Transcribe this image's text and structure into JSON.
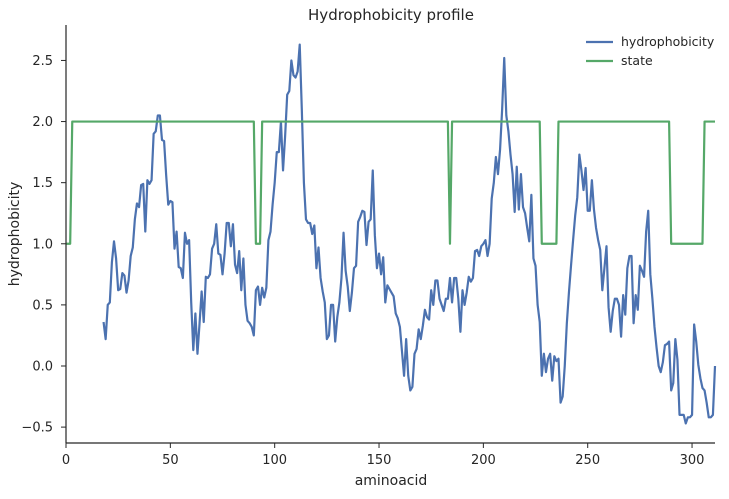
{
  "chart_data": {
    "type": "line",
    "title": "Hydrophobicity profile",
    "xlabel": "aminoacid",
    "ylabel": "hydrophobicity",
    "xlim": [
      0,
      311
    ],
    "ylim": [
      -0.63,
      2.79
    ],
    "xticks": [
      0,
      50,
      100,
      150,
      200,
      250,
      300
    ],
    "yticks": [
      -0.5,
      0.0,
      0.5,
      1.0,
      1.5,
      2.0,
      2.5
    ],
    "xtick_labels": [
      "0",
      "50",
      "100",
      "150",
      "200",
      "250",
      "300"
    ],
    "ytick_labels": [
      "−0.5",
      "0.0",
      "0.5",
      "1.0",
      "1.5",
      "2.0",
      "2.5"
    ],
    "grid": false,
    "legend_position": "top-right",
    "series": [
      {
        "name": "hydrophobicity",
        "color": "#4c72b0",
        "points": [
          [
            18,
            0.36
          ],
          [
            19,
            0.22
          ],
          [
            20,
            0.5
          ],
          [
            21,
            0.52
          ],
          [
            22,
            0.85
          ],
          [
            23,
            1.02
          ],
          [
            24,
            0.88
          ],
          [
            25,
            0.62
          ],
          [
            26,
            0.63
          ],
          [
            27,
            0.76
          ],
          [
            28,
            0.74
          ],
          [
            29,
            0.6
          ],
          [
            30,
            0.7
          ],
          [
            31,
            0.9
          ],
          [
            32,
            0.97
          ],
          [
            33,
            1.2
          ],
          [
            34,
            1.33
          ],
          [
            35,
            1.3
          ],
          [
            36,
            1.48
          ],
          [
            37,
            1.49
          ],
          [
            38,
            1.1
          ],
          [
            39,
            1.52
          ],
          [
            40,
            1.49
          ],
          [
            41,
            1.52
          ],
          [
            42,
            1.9
          ],
          [
            43,
            1.92
          ],
          [
            44,
            2.05
          ],
          [
            45,
            2.05
          ],
          [
            46,
            1.85
          ],
          [
            47,
            1.84
          ],
          [
            48,
            1.56
          ],
          [
            49,
            1.32
          ],
          [
            50,
            1.35
          ],
          [
            51,
            1.34
          ],
          [
            52,
            0.96
          ],
          [
            53,
            1.1
          ],
          [
            54,
            0.81
          ],
          [
            55,
            0.8
          ],
          [
            56,
            0.72
          ],
          [
            57,
            1.09
          ],
          [
            58,
            1.0
          ],
          [
            59,
            1.03
          ],
          [
            60,
            0.52
          ],
          [
            61,
            0.13
          ],
          [
            62,
            0.43
          ],
          [
            63,
            0.1
          ],
          [
            64,
            0.35
          ],
          [
            65,
            0.61
          ],
          [
            66,
            0.36
          ],
          [
            67,
            0.73
          ],
          [
            68,
            0.72
          ],
          [
            69,
            0.75
          ],
          [
            70,
            0.96
          ],
          [
            71,
            1.0
          ],
          [
            72,
            1.16
          ],
          [
            73,
            0.92
          ],
          [
            74,
            0.91
          ],
          [
            75,
            0.75
          ],
          [
            76,
            0.92
          ],
          [
            77,
            1.17
          ],
          [
            78,
            1.17
          ],
          [
            79,
            0.98
          ],
          [
            80,
            1.16
          ],
          [
            81,
            0.83
          ],
          [
            82,
            0.76
          ],
          [
            83,
            0.94
          ],
          [
            84,
            0.62
          ],
          [
            85,
            0.88
          ],
          [
            86,
            0.5
          ],
          [
            87,
            0.37
          ],
          [
            88,
            0.35
          ],
          [
            89,
            0.32
          ],
          [
            90,
            0.25
          ],
          [
            91,
            0.62
          ],
          [
            92,
            0.65
          ],
          [
            93,
            0.5
          ],
          [
            94,
            0.64
          ],
          [
            95,
            0.56
          ],
          [
            96,
            0.64
          ],
          [
            97,
            1.03
          ],
          [
            98,
            1.1
          ],
          [
            99,
            1.32
          ],
          [
            100,
            1.5
          ],
          [
            101,
            1.75
          ],
          [
            102,
            1.75
          ],
          [
            103,
            2.0
          ],
          [
            104,
            1.6
          ],
          [
            105,
            1.88
          ],
          [
            106,
            2.22
          ],
          [
            107,
            2.25
          ],
          [
            108,
            2.5
          ],
          [
            109,
            2.38
          ],
          [
            110,
            2.36
          ],
          [
            111,
            2.41
          ],
          [
            112,
            2.63
          ],
          [
            113,
            2.1
          ],
          [
            114,
            1.5
          ],
          [
            115,
            1.2
          ],
          [
            116,
            1.17
          ],
          [
            117,
            1.17
          ],
          [
            118,
            1.08
          ],
          [
            119,
            1.15
          ],
          [
            120,
            0.8
          ],
          [
            121,
            0.97
          ],
          [
            122,
            0.72
          ],
          [
            123,
            0.61
          ],
          [
            124,
            0.52
          ],
          [
            125,
            0.22
          ],
          [
            126,
            0.25
          ],
          [
            127,
            0.5
          ],
          [
            128,
            0.5
          ],
          [
            129,
            0.2
          ],
          [
            130,
            0.4
          ],
          [
            131,
            0.52
          ],
          [
            132,
            0.72
          ],
          [
            133,
            1.09
          ],
          [
            134,
            0.78
          ],
          [
            135,
            0.65
          ],
          [
            136,
            0.45
          ],
          [
            137,
            0.6
          ],
          [
            138,
            0.8
          ],
          [
            139,
            0.82
          ],
          [
            140,
            1.18
          ],
          [
            141,
            1.22
          ],
          [
            142,
            1.27
          ],
          [
            143,
            1.26
          ],
          [
            144,
            0.99
          ],
          [
            145,
            1.18
          ],
          [
            146,
            1.2
          ],
          [
            147,
            1.6
          ],
          [
            148,
            1.07
          ],
          [
            149,
            0.8
          ],
          [
            150,
            0.92
          ],
          [
            151,
            0.75
          ],
          [
            152,
            0.89
          ],
          [
            153,
            0.52
          ],
          [
            154,
            0.66
          ],
          [
            155,
            0.63
          ],
          [
            156,
            0.6
          ],
          [
            157,
            0.57
          ],
          [
            158,
            0.43
          ],
          [
            159,
            0.39
          ],
          [
            160,
            0.32
          ],
          [
            161,
            0.12
          ],
          [
            162,
            -0.08
          ],
          [
            163,
            0.22
          ],
          [
            164,
            -0.08
          ],
          [
            165,
            -0.2
          ],
          [
            166,
            -0.17
          ],
          [
            167,
            0.1
          ],
          [
            168,
            0.14
          ],
          [
            169,
            0.3
          ],
          [
            170,
            0.22
          ],
          [
            171,
            0.33
          ],
          [
            172,
            0.46
          ],
          [
            173,
            0.4
          ],
          [
            174,
            0.38
          ],
          [
            175,
            0.62
          ],
          [
            176,
            0.5
          ],
          [
            177,
            0.7
          ],
          [
            178,
            0.7
          ],
          [
            179,
            0.55
          ],
          [
            180,
            0.5
          ],
          [
            181,
            0.45
          ],
          [
            182,
            0.55
          ],
          [
            183,
            0.55
          ],
          [
            184,
            0.72
          ],
          [
            185,
            0.52
          ],
          [
            186,
            0.72
          ],
          [
            187,
            0.72
          ],
          [
            188,
            0.55
          ],
          [
            189,
            0.28
          ],
          [
            190,
            0.62
          ],
          [
            191,
            0.5
          ],
          [
            192,
            0.6
          ],
          [
            193,
            0.73
          ],
          [
            194,
            0.69
          ],
          [
            195,
            0.72
          ],
          [
            196,
            0.94
          ],
          [
            197,
            0.95
          ],
          [
            198,
            0.9
          ],
          [
            199,
            0.98
          ],
          [
            200,
            1.0
          ],
          [
            201,
            1.03
          ],
          [
            202,
            0.9
          ],
          [
            203,
            1.0
          ],
          [
            204,
            1.37
          ],
          [
            205,
            1.5
          ],
          [
            206,
            1.71
          ],
          [
            207,
            1.57
          ],
          [
            208,
            1.77
          ],
          [
            209,
            2.1
          ],
          [
            210,
            2.52
          ],
          [
            211,
            2.05
          ],
          [
            212,
            1.92
          ],
          [
            213,
            1.73
          ],
          [
            214,
            1.57
          ],
          [
            215,
            1.26
          ],
          [
            216,
            1.63
          ],
          [
            217,
            1.28
          ],
          [
            218,
            1.57
          ],
          [
            219,
            1.3
          ],
          [
            220,
            1.25
          ],
          [
            221,
            1.13
          ],
          [
            222,
            1.02
          ],
          [
            223,
            1.4
          ],
          [
            224,
            0.88
          ],
          [
            225,
            0.82
          ],
          [
            226,
            0.5
          ],
          [
            227,
            0.36
          ],
          [
            228,
            -0.08
          ],
          [
            229,
            0.1
          ],
          [
            230,
            -0.05
          ],
          [
            231,
            0.06
          ],
          [
            232,
            0.1
          ],
          [
            233,
            -0.12
          ],
          [
            234,
            0.08
          ],
          [
            235,
            0.04
          ],
          [
            236,
            0.06
          ],
          [
            237,
            -0.3
          ],
          [
            238,
            -0.25
          ],
          [
            239,
            0.0
          ],
          [
            240,
            0.35
          ],
          [
            241,
            0.6
          ],
          [
            242,
            0.82
          ],
          [
            243,
            1.03
          ],
          [
            244,
            1.23
          ],
          [
            245,
            1.38
          ],
          [
            246,
            1.73
          ],
          [
            247,
            1.6
          ],
          [
            248,
            1.44
          ],
          [
            249,
            1.62
          ],
          [
            250,
            1.27
          ],
          [
            251,
            1.27
          ],
          [
            252,
            1.52
          ],
          [
            253,
            1.28
          ],
          [
            254,
            1.13
          ],
          [
            255,
            1.03
          ],
          [
            256,
            0.95
          ],
          [
            257,
            0.62
          ],
          [
            258,
            0.8
          ],
          [
            259,
            0.98
          ],
          [
            260,
            0.48
          ],
          [
            261,
            0.28
          ],
          [
            262,
            0.45
          ],
          [
            263,
            0.55
          ],
          [
            264,
            0.55
          ],
          [
            265,
            0.5
          ],
          [
            266,
            0.24
          ],
          [
            267,
            0.58
          ],
          [
            268,
            0.42
          ],
          [
            269,
            0.8
          ],
          [
            270,
            0.9
          ],
          [
            271,
            0.9
          ],
          [
            272,
            0.35
          ],
          [
            273,
            0.58
          ],
          [
            274,
            0.46
          ],
          [
            275,
            0.82
          ],
          [
            276,
            0.78
          ],
          [
            277,
            0.73
          ],
          [
            278,
            1.1
          ],
          [
            279,
            1.27
          ],
          [
            280,
            0.75
          ],
          [
            281,
            0.55
          ],
          [
            282,
            0.32
          ],
          [
            283,
            0.15
          ],
          [
            284,
            0.0
          ],
          [
            285,
            -0.05
          ],
          [
            286,
            0.03
          ],
          [
            287,
            0.17
          ],
          [
            288,
            0.18
          ],
          [
            289,
            0.2
          ],
          [
            290,
            -0.2
          ],
          [
            291,
            -0.14
          ],
          [
            292,
            0.22
          ],
          [
            293,
            0.05
          ],
          [
            294,
            -0.4
          ],
          [
            295,
            -0.4
          ],
          [
            296,
            -0.4
          ],
          [
            297,
            -0.47
          ],
          [
            298,
            -0.42
          ],
          [
            299,
            -0.42
          ],
          [
            300,
            -0.4
          ],
          [
            301,
            0.34
          ],
          [
            302,
            0.2
          ],
          [
            303,
            0.01
          ],
          [
            304,
            -0.1
          ],
          [
            305,
            -0.18
          ],
          [
            306,
            -0.2
          ],
          [
            307,
            -0.3
          ],
          [
            308,
            -0.42
          ],
          [
            309,
            -0.42
          ],
          [
            310,
            -0.4
          ],
          [
            311,
            0.0
          ]
        ]
      },
      {
        "name": "state",
        "color": "#55a868",
        "points": [
          [
            0,
            1.0
          ],
          [
            2,
            1.0
          ],
          [
            3,
            2.0
          ],
          [
            90,
            2.0
          ],
          [
            91,
            1.0
          ],
          [
            93,
            1.0
          ],
          [
            94,
            2.0
          ],
          [
            183,
            2.0
          ],
          [
            184,
            1.0
          ],
          [
            185,
            2.0
          ],
          [
            227,
            2.0
          ],
          [
            228,
            1.0
          ],
          [
            235,
            1.0
          ],
          [
            236,
            2.0
          ],
          [
            289,
            2.0
          ],
          [
            290,
            1.0
          ],
          [
            305,
            1.0
          ],
          [
            306,
            2.0
          ],
          [
            311,
            2.0
          ]
        ]
      }
    ]
  }
}
